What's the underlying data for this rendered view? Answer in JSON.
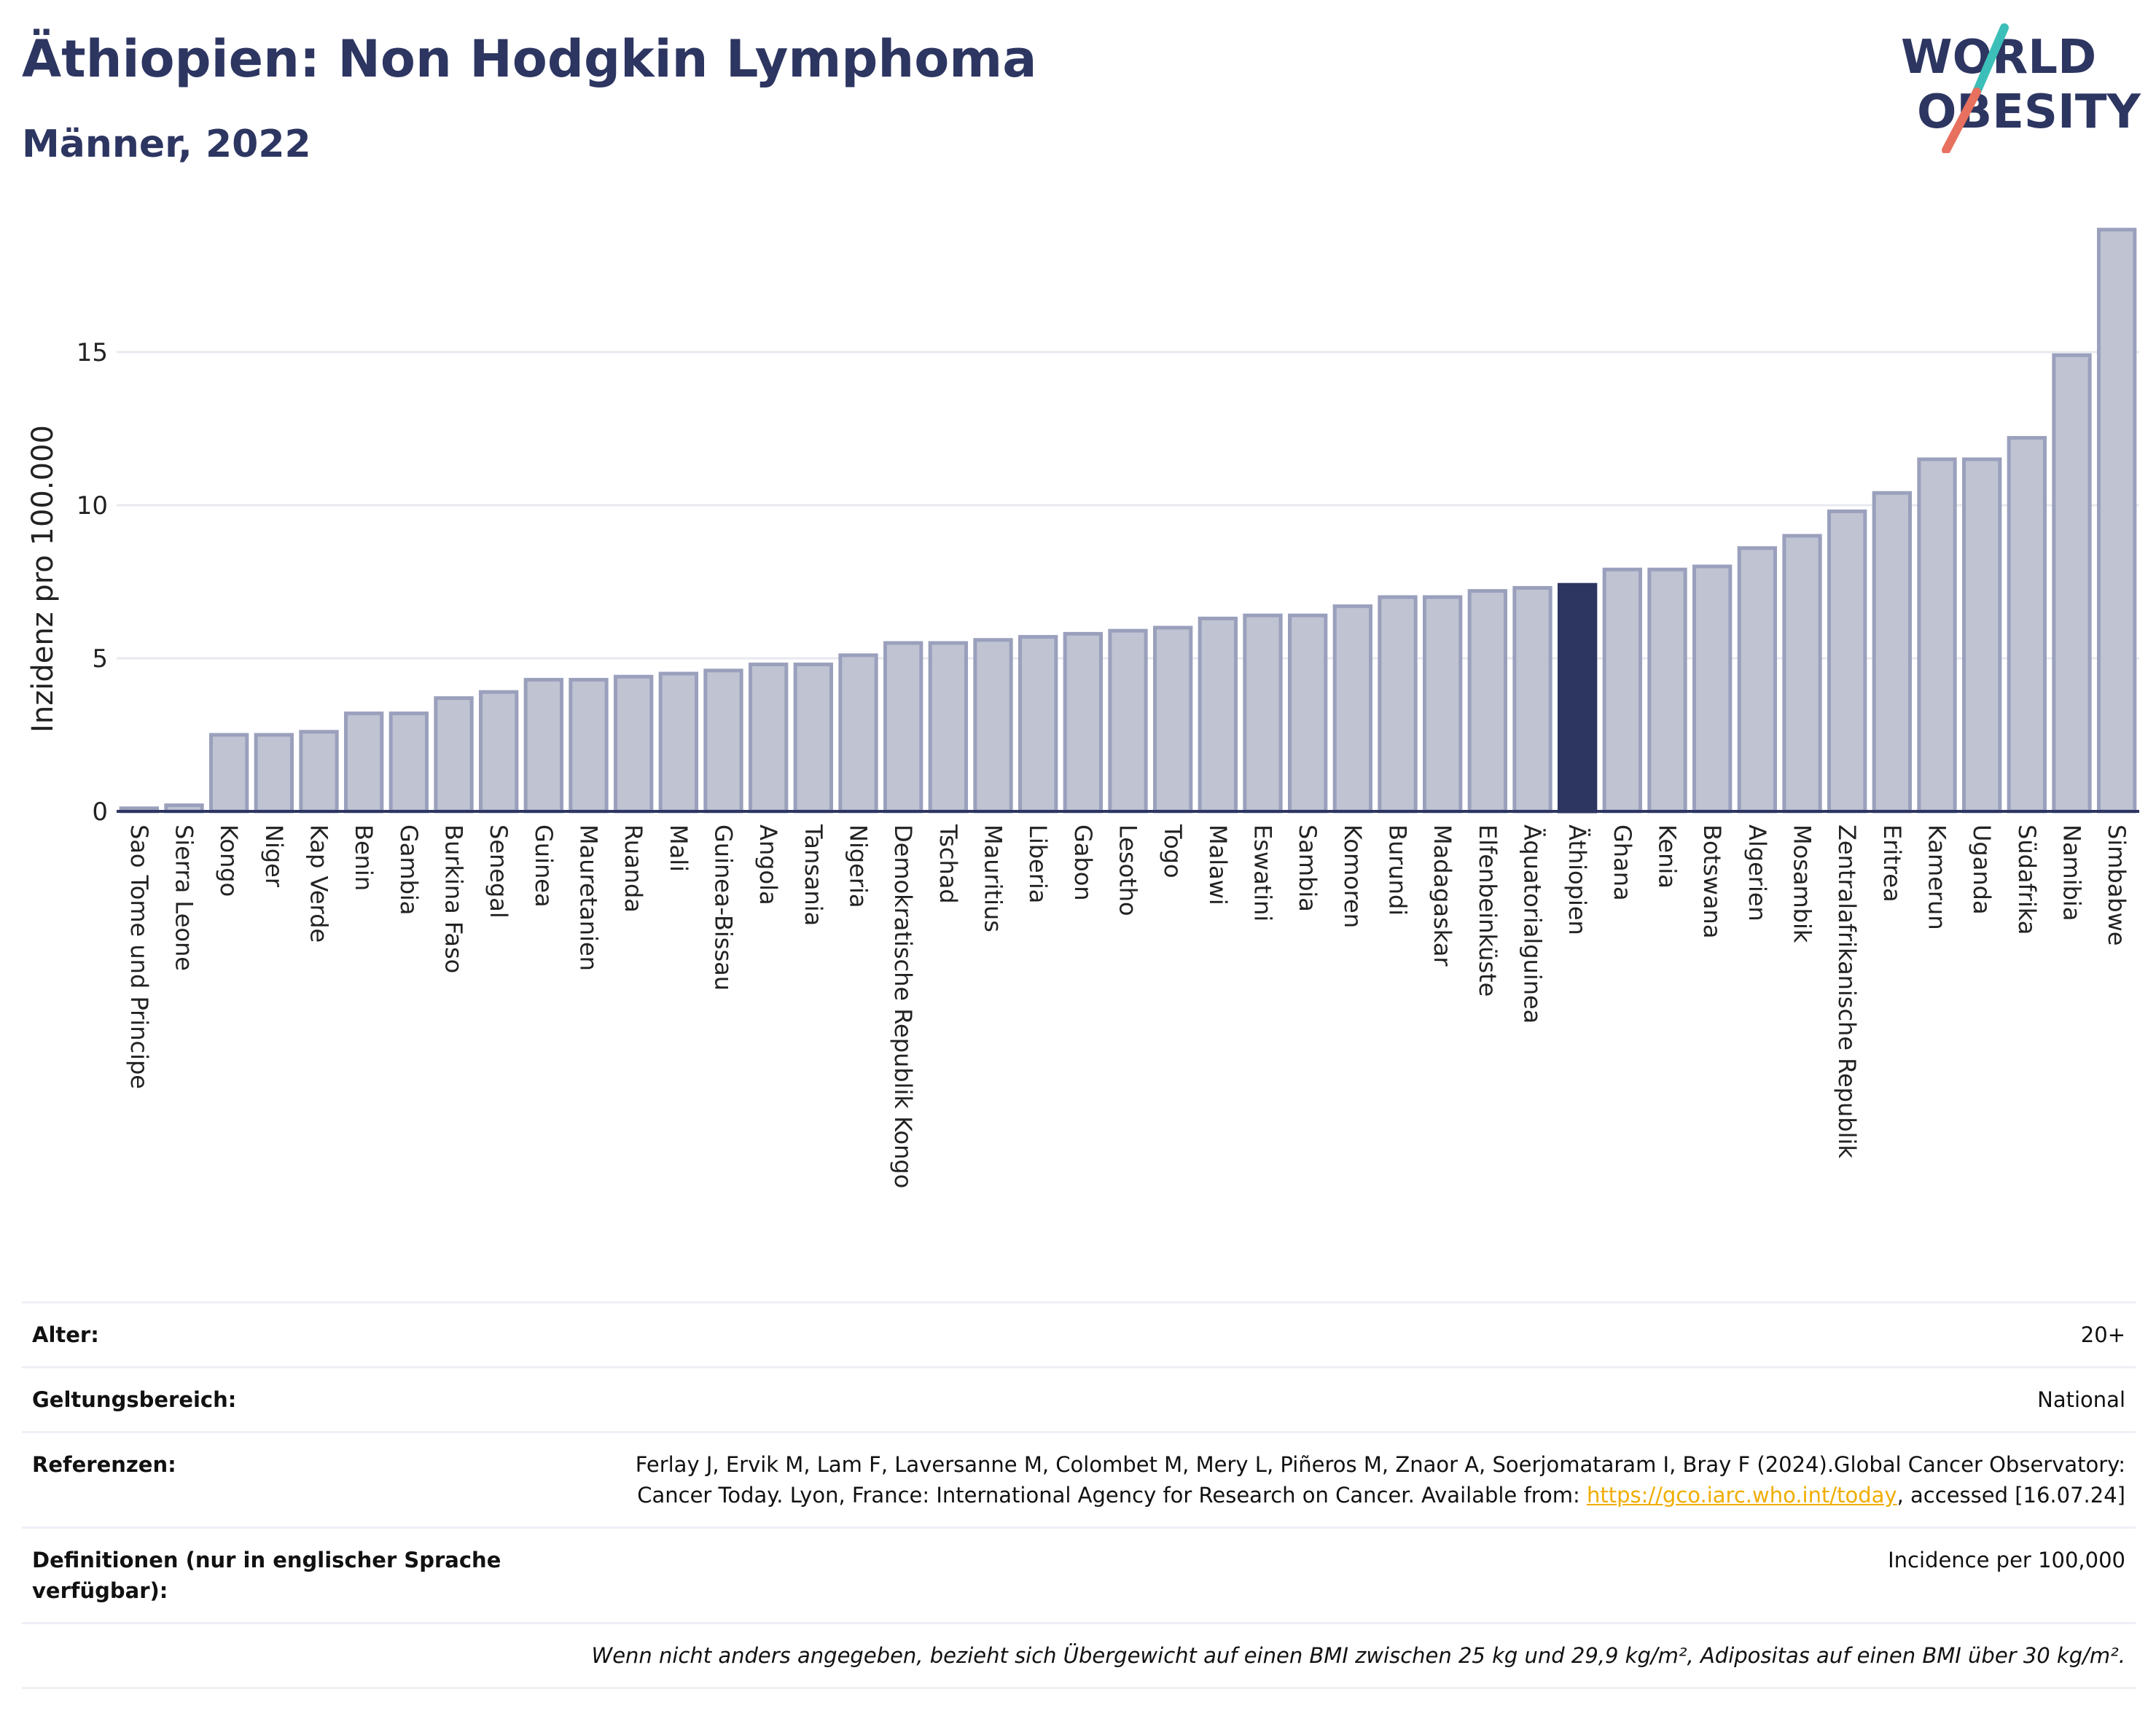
{
  "title": "Äthiopien: Non Hodgkin Lymphoma",
  "subtitle": "Männer, 2022",
  "logo": {
    "line1": "WORLD",
    "line2": "OBESITY",
    "colors": {
      "text": "#2d3561",
      "slash_teal": "#3bbfb8",
      "slash_red": "#e8705f"
    }
  },
  "colors": {
    "bar_fill": "#bfc3d2",
    "bar_stroke": "#9aa0bc",
    "highlight_fill": "#2d3561",
    "axis": "#2d3561",
    "grid": "#e8eaf0",
    "link": "#f0ad00"
  },
  "chart_data": {
    "type": "bar",
    "ylabel": "Inzidenz pro 100.000",
    "xlabel": "",
    "ylim": [
      0,
      19
    ],
    "yticks": [
      0,
      5,
      10,
      15
    ],
    "grid": "horizontal",
    "highlight": "Äthiopien",
    "categories": [
      "Sao Tome und Principe",
      "Sierra Leone",
      "Kongo",
      "Niger",
      "Kap Verde",
      "Benin",
      "Gambia",
      "Burkina Faso",
      "Senegal",
      "Guinea",
      "Mauretanien",
      "Ruanda",
      "Mali",
      "Guinea-Bissau",
      "Angola",
      "Tansania",
      "Nigeria",
      "Demokratische Republik Kongo",
      "Tschad",
      "Mauritius",
      "Liberia",
      "Gabon",
      "Lesotho",
      "Togo",
      "Malawi",
      "Eswatini",
      "Sambia",
      "Komoren",
      "Burundi",
      "Madagaskar",
      "Elfenbeinküste",
      "Äquatorialguinea",
      "Äthiopien",
      "Ghana",
      "Kenia",
      "Botswana",
      "Algerien",
      "Mosambik",
      "Zentralafrikanische Republik",
      "Eritrea",
      "Kamerun",
      "Uganda",
      "Südafrika",
      "Namibia",
      "Simbabwe"
    ],
    "values": [
      0.1,
      0.2,
      2.5,
      2.5,
      2.6,
      3.2,
      3.2,
      3.7,
      3.9,
      4.3,
      4.3,
      4.4,
      4.5,
      4.6,
      4.8,
      4.8,
      5.1,
      5.5,
      5.5,
      5.6,
      5.7,
      5.8,
      5.9,
      6.0,
      6.3,
      6.4,
      6.4,
      6.7,
      7.0,
      7.0,
      7.2,
      7.3,
      7.4,
      7.9,
      7.9,
      8.0,
      8.6,
      9.0,
      9.8,
      10.4,
      11.5,
      11.5,
      12.2,
      14.9,
      19.0
    ]
  },
  "info": {
    "age_label": "Alter:",
    "age_value": "20+",
    "scope_label": "Geltungsbereich:",
    "scope_value": "National",
    "refs_label": "Referenzen:",
    "refs_text_1": "Ferlay J, Ervik M, Lam F, Laversanne M, Colombet M, Mery L, Piñeros M, Znaor A, Soerjomataram I, Bray F (2024).Global Cancer Observatory: Cancer Today. Lyon, France: International Agency for Research on Cancer. Available from: ",
    "refs_link": "https://gco.iarc.who.int/today",
    "refs_text_2": ", accessed [16.07.24]",
    "defs_label": "Definitionen (nur in englischer Sprache verfügbar):",
    "defs_value": "Incidence per 100,000",
    "note": "Wenn nicht anders angegeben, bezieht sich Übergewicht auf einen BMI zwischen 25 kg und 29,9 kg/m², Adipositas auf einen BMI über 30 kg/m²."
  }
}
